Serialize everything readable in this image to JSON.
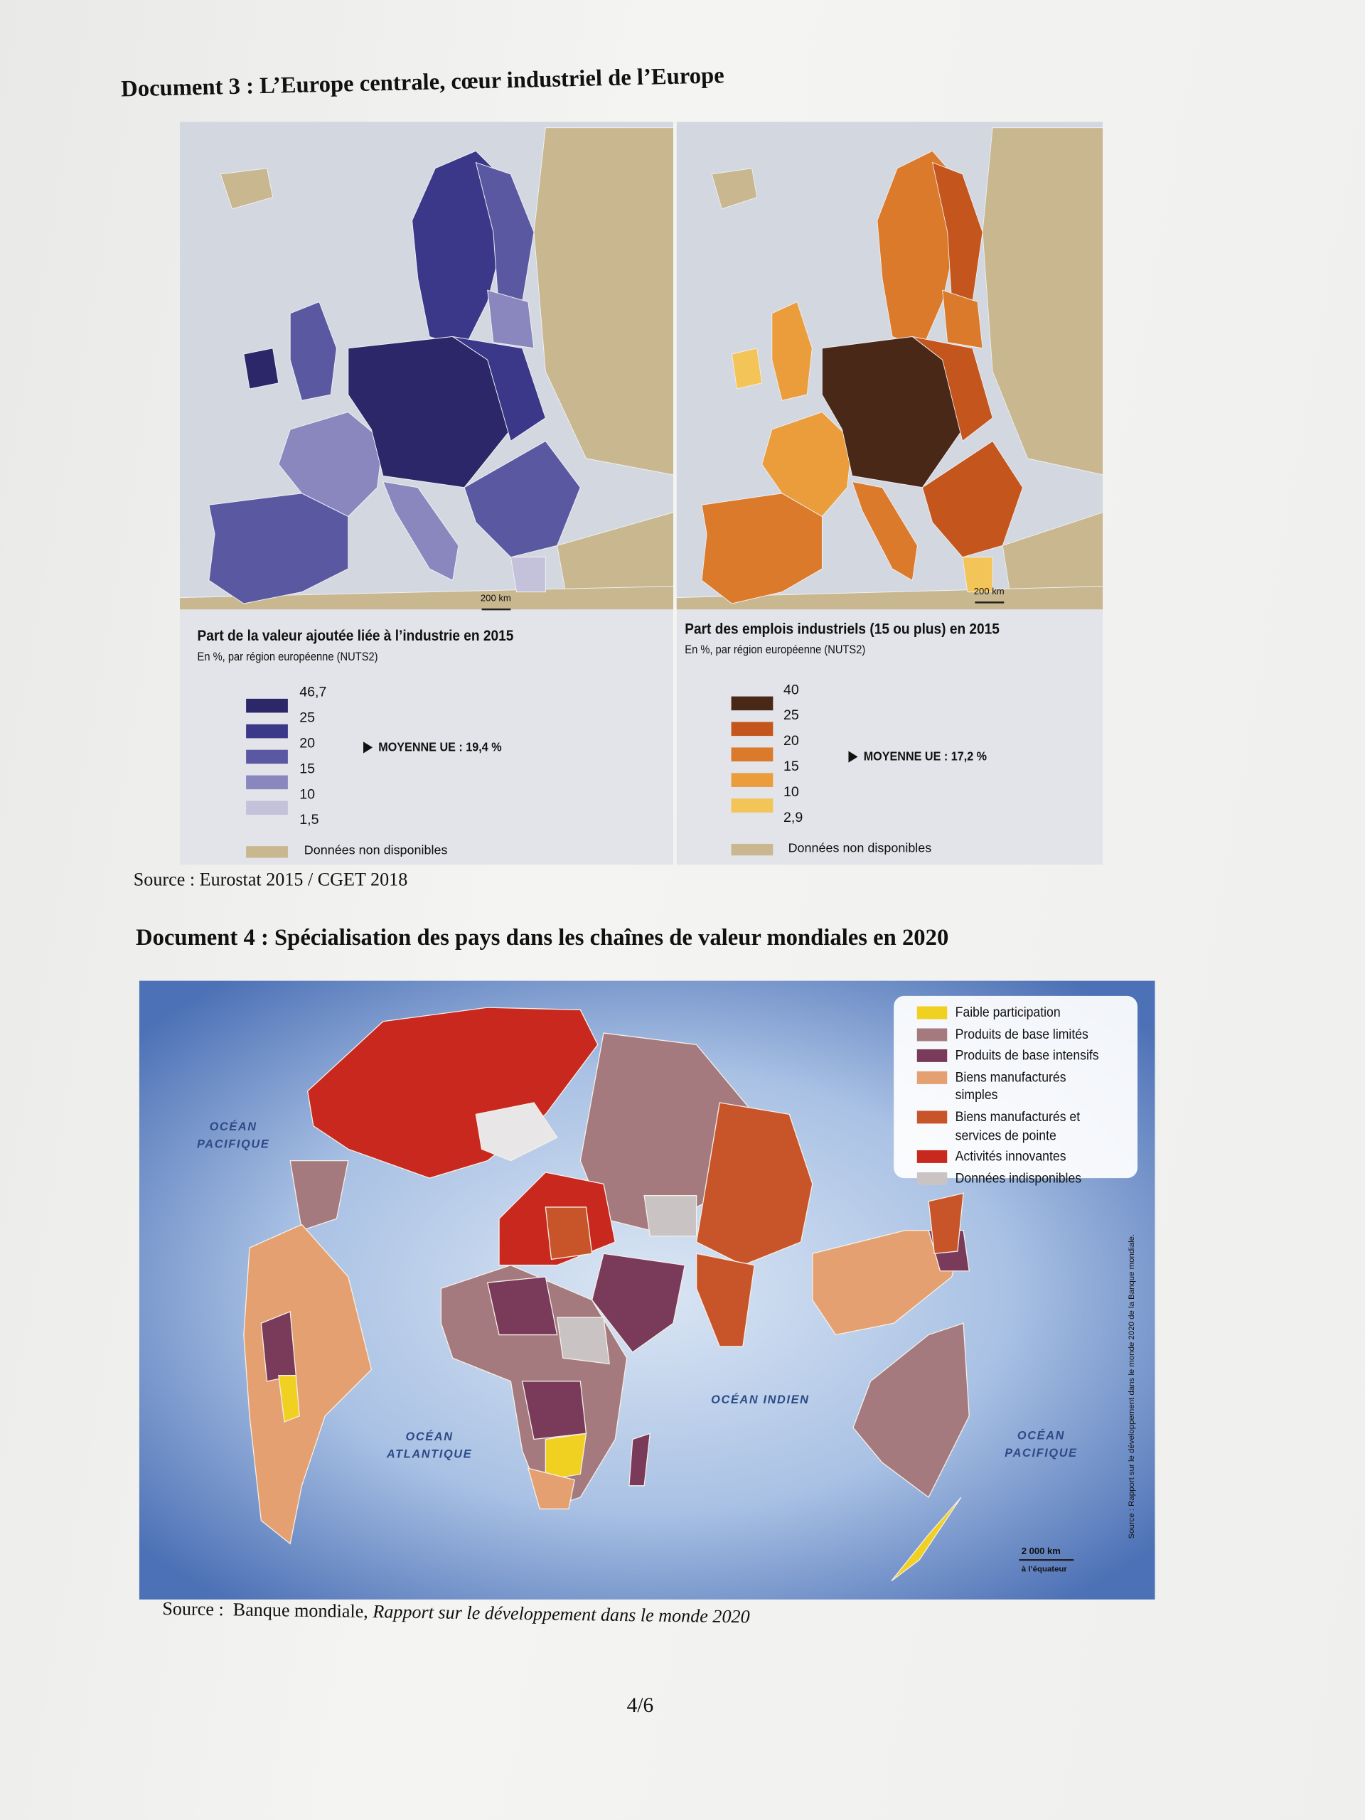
{
  "document3": {
    "title": "Document 3 : L’Europe centrale, cœur industriel de l’Europe",
    "maps": [
      {
        "title": "Part de la valeur ajoutée liée à l’industrie en 2015",
        "subtitle": "En %, par région européenne (NUTS2)",
        "breaks": [
          "46,7",
          "25",
          "20",
          "15",
          "10",
          "1,5"
        ],
        "colors": [
          "#2b2768",
          "#3b3889",
          "#5b58a2",
          "#8a87bf",
          "#c4c2da"
        ],
        "average": "MOYENNE UE : 19,4 %",
        "no_data": {
          "label": "Données non disponibles",
          "color": "#c8b78f"
        },
        "scale": "200 km"
      },
      {
        "title": "Part des emplois industriels (15 ou plus) en 2015",
        "subtitle": "En %, par région européenne (NUTS2)",
        "breaks": [
          "40",
          "25",
          "20",
          "15",
          "10",
          "2,9"
        ],
        "colors": [
          "#4a2818",
          "#c4561d",
          "#db7a2a",
          "#eb9d3c",
          "#f3c458"
        ],
        "average": "MOYENNE UE : 17,2 %",
        "no_data": {
          "label": "Données non disponibles",
          "color": "#c8b78f"
        },
        "scale": "200 km"
      }
    ],
    "source": "Source : Eurostat 2015 / CGET 2018"
  },
  "document4": {
    "title": "Document 4 : Spécialisation des pays dans les chaînes de valeur mondiales en 2020",
    "legend": [
      {
        "label": "Faible participation",
        "color": "#f0d020"
      },
      {
        "label": "Produits de base limités",
        "color": "#a47a7e"
      },
      {
        "label": "Produits de base intensifs",
        "color": "#7a3a5a"
      },
      {
        "label": "Biens manufacturés simples",
        "color": "#e4a070"
      },
      {
        "label": "Biens manufacturés et services de pointe",
        "color": "#c8552a"
      },
      {
        "label": "Activités innovantes",
        "color": "#c8281e"
      },
      {
        "label": "Données indisponibles",
        "color": "#cac3c3"
      }
    ],
    "oceans": [
      "OCÉAN PACIFIQUE",
      "OCÉAN ATLANTIQUE",
      "OCÉAN INDIEN",
      "OCÉAN PACIFIQUE"
    ],
    "scale": "2 000 km",
    "scale_note": "à l’équateur",
    "side_source": "Source : Rapport sur le développement dans le monde 2020 de la Banque mondiale.",
    "source_prefix": "Source :",
    "source_author": "Banque mondiale,",
    "source_title": "Rapport sur le développement dans le monde 2020"
  },
  "page_number": "4/6"
}
